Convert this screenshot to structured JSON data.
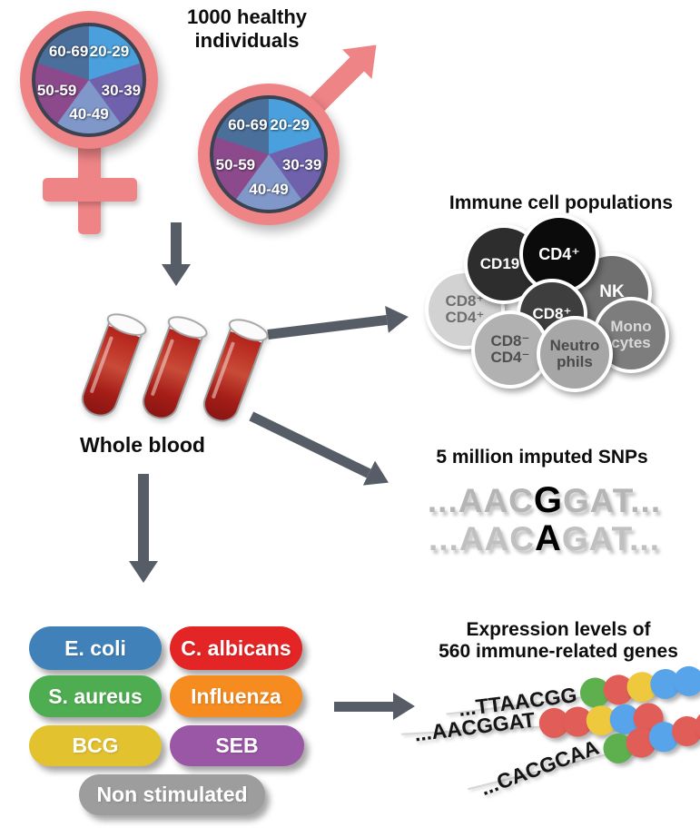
{
  "colors": {
    "symbol_pink": "#ee8486",
    "arrow_gray": "#575d66",
    "pie_border": "#3b4251",
    "blood_red": "#b0241d"
  },
  "cohort": {
    "title": "1000 healthy\nindividuals",
    "age_groups": [
      "20-29",
      "30-39",
      "40-49",
      "50-59",
      "60-69"
    ],
    "slice_colors": [
      "#4aa0dc",
      "#6f61ac",
      "#8097c9",
      "#8c4a8c",
      "#4b6f9b"
    ]
  },
  "whole_blood": {
    "label": "Whole blood"
  },
  "immune_cells": {
    "title": "Immune cell populations",
    "cells": [
      {
        "label": "CD8⁺\nCD4⁺",
        "bg": "#d2d2d2",
        "fg": "#6e6e6e"
      },
      {
        "label": "CD19⁺",
        "bg": "#2d2d2d",
        "fg": "#ffffff"
      },
      {
        "label": "NK",
        "bg": "#6f6f6f",
        "fg": "#ffffff"
      },
      {
        "label": "CD4⁺",
        "bg": "#0b0b0b",
        "fg": "#ffffff"
      },
      {
        "label": "CD8⁺",
        "bg": "#3e3e3e",
        "fg": "#ffffff"
      },
      {
        "label": "Mono\ncytes",
        "bg": "#7d7d7d",
        "fg": "#d9d9d9"
      },
      {
        "label": "CD8⁻\nCD4⁻",
        "bg": "#b1b1b1",
        "fg": "#4e4e4e"
      },
      {
        "label": "Neutro\nphils",
        "bg": "#a6a6a6",
        "fg": "#4a4a4a"
      }
    ]
  },
  "snps": {
    "title": "5 million imputed SNPs",
    "sequences": [
      {
        "prefix": "...AAC",
        "variant": "G",
        "suffix": "GAT..."
      },
      {
        "prefix": "...AAC",
        "variant": "A",
        "suffix": "GAT..."
      }
    ]
  },
  "stimuli": {
    "items": [
      {
        "label": "E. coli",
        "color": "#4081b9"
      },
      {
        "label": "C. albicans",
        "color": "#e42526"
      },
      {
        "label": "S. aureus",
        "color": "#4fad51"
      },
      {
        "label": "Influenza",
        "color": "#f68b1f"
      },
      {
        "label": "BCG",
        "color": "#e3c230"
      },
      {
        "label": "SEB",
        "color": "#9a57a5"
      },
      {
        "label": "Non stimulated",
        "color": "#9d9d9d"
      }
    ]
  },
  "expression": {
    "title": "Expression levels of\n560 immune-related genes",
    "dot_colors": {
      "green": "#5eb04f",
      "red": "#e15d57",
      "yellow": "#eec93e",
      "blue": "#57a4ea"
    },
    "rows": [
      {
        "sequence": "...TTAACGG",
        "dots": [
          "green",
          "red",
          "yellow",
          "blue",
          "blue"
        ]
      },
      {
        "sequence": "...AACGGAT",
        "dots": [
          "red",
          "red",
          "yellow",
          "blue",
          "red"
        ]
      },
      {
        "sequence": "...CACGCAA",
        "dots": [
          "green",
          "red",
          "blue",
          "red",
          "red"
        ]
      }
    ]
  }
}
